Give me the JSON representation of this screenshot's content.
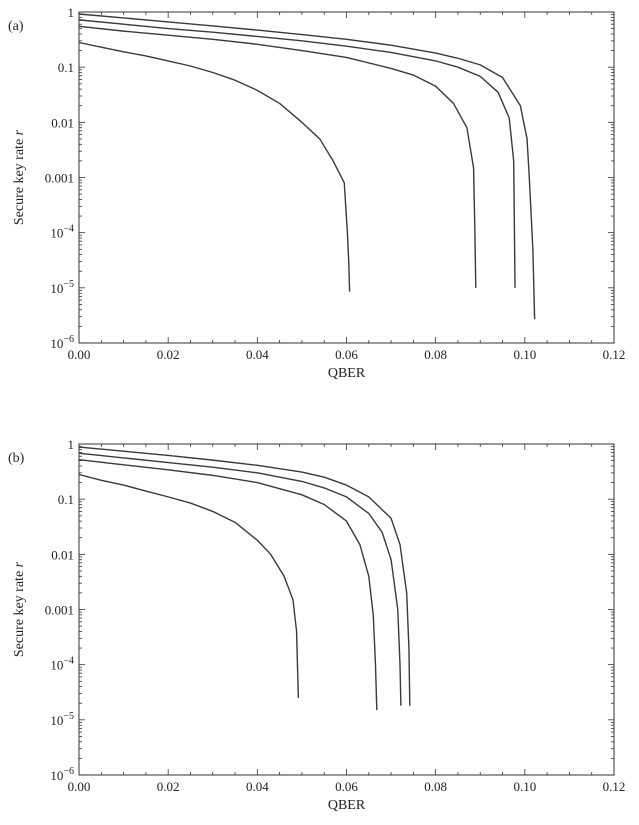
{
  "chart_data": [
    {
      "type": "line",
      "panel_label": "(a)",
      "xlabel": "QBER",
      "ylabel": "Secure key rate r",
      "xlim": [
        0,
        0.12
      ],
      "ylim": [
        1e-06,
        1
      ],
      "yscale": "log",
      "xticks": [
        "0.00",
        "0.02",
        "0.04",
        "0.06",
        "0.08",
        "0.10",
        "0.12"
      ],
      "yticks": [
        {
          "value": 1,
          "label": "1"
        },
        {
          "value": 0.1,
          "label": "0.1"
        },
        {
          "value": 0.01,
          "label": "0.01"
        },
        {
          "value": 0.001,
          "label": "0.001"
        },
        {
          "value": 0.0001,
          "label": "10^-4"
        },
        {
          "value": 1e-05,
          "label": "10^-5"
        },
        {
          "value": 1e-06,
          "label": "10^-6"
        }
      ],
      "series": [
        {
          "x": [
            0,
            0.005,
            0.01,
            0.015,
            0.02,
            0.025,
            0.03,
            0.035,
            0.04,
            0.045,
            0.05,
            0.054,
            0.057,
            0.0595,
            0.0602,
            0.0605,
            0.0607
          ],
          "values": [
            0.28,
            0.23,
            0.19,
            0.16,
            0.13,
            0.105,
            0.08,
            0.058,
            0.038,
            0.022,
            0.01,
            0.005,
            0.002,
            0.0008,
            0.0001,
            3e-05,
            8.5e-06
          ]
        },
        {
          "x": [
            0,
            0.01,
            0.02,
            0.03,
            0.04,
            0.05,
            0.06,
            0.07,
            0.075,
            0.08,
            0.084,
            0.087,
            0.0885,
            0.0888,
            0.089
          ],
          "values": [
            0.55,
            0.45,
            0.38,
            0.32,
            0.26,
            0.2,
            0.15,
            0.095,
            0.072,
            0.045,
            0.022,
            0.008,
            0.0015,
            0.0001,
            1e-05
          ]
        },
        {
          "x": [
            0,
            0.01,
            0.02,
            0.03,
            0.04,
            0.05,
            0.06,
            0.07,
            0.08,
            0.085,
            0.09,
            0.094,
            0.0965,
            0.0975,
            0.0978
          ],
          "values": [
            0.72,
            0.6,
            0.5,
            0.43,
            0.36,
            0.3,
            0.24,
            0.185,
            0.13,
            0.1,
            0.068,
            0.035,
            0.012,
            0.002,
            1e-05
          ]
        },
        {
          "x": [
            0,
            0.01,
            0.02,
            0.03,
            0.04,
            0.05,
            0.06,
            0.07,
            0.08,
            0.085,
            0.09,
            0.095,
            0.099,
            0.1005,
            0.101,
            0.1018,
            0.1022
          ],
          "values": [
            0.92,
            0.78,
            0.66,
            0.56,
            0.47,
            0.39,
            0.32,
            0.25,
            0.18,
            0.145,
            0.11,
            0.065,
            0.02,
            0.005,
            0.001,
            5e-05,
            2.7e-06
          ]
        }
      ]
    },
    {
      "type": "line",
      "panel_label": "(b)",
      "xlabel": "QBER",
      "ylabel": "Secure key rate r",
      "xlim": [
        0,
        0.12
      ],
      "ylim": [
        1e-06,
        1
      ],
      "yscale": "log",
      "xticks": [
        "0.00",
        "0.02",
        "0.04",
        "0.06",
        "0.08",
        "0.10",
        "0.12"
      ],
      "yticks": [
        {
          "value": 1,
          "label": "1"
        },
        {
          "value": 0.1,
          "label": "0.1"
        },
        {
          "value": 0.01,
          "label": "0.01"
        },
        {
          "value": 0.001,
          "label": "0.001"
        },
        {
          "value": 0.0001,
          "label": "10^-4"
        },
        {
          "value": 1e-05,
          "label": "10^-5"
        },
        {
          "value": 1e-06,
          "label": "10^-6"
        }
      ],
      "series": [
        {
          "x": [
            0,
            0.005,
            0.01,
            0.015,
            0.02,
            0.025,
            0.03,
            0.035,
            0.04,
            0.043,
            0.046,
            0.048,
            0.0488,
            0.049,
            0.0492
          ],
          "values": [
            0.28,
            0.22,
            0.18,
            0.14,
            0.11,
            0.085,
            0.06,
            0.038,
            0.018,
            0.01,
            0.004,
            0.0015,
            0.0004,
            0.0001,
            2.5e-05
          ]
        },
        {
          "x": [
            0,
            0.01,
            0.02,
            0.03,
            0.04,
            0.05,
            0.055,
            0.06,
            0.063,
            0.065,
            0.066,
            0.0665,
            0.0668
          ],
          "values": [
            0.52,
            0.42,
            0.34,
            0.27,
            0.2,
            0.12,
            0.08,
            0.04,
            0.015,
            0.004,
            0.0008,
            0.0001,
            1.5e-05
          ]
        },
        {
          "x": [
            0,
            0.01,
            0.02,
            0.03,
            0.04,
            0.05,
            0.055,
            0.06,
            0.065,
            0.068,
            0.07,
            0.0715,
            0.072,
            0.0722
          ],
          "values": [
            0.68,
            0.56,
            0.46,
            0.38,
            0.3,
            0.21,
            0.16,
            0.11,
            0.055,
            0.025,
            0.008,
            0.001,
            0.0001,
            1.8e-05
          ]
        },
        {
          "x": [
            0,
            0.01,
            0.02,
            0.03,
            0.04,
            0.05,
            0.055,
            0.06,
            0.065,
            0.07,
            0.072,
            0.0735,
            0.074,
            0.0742
          ],
          "values": [
            0.88,
            0.74,
            0.62,
            0.51,
            0.41,
            0.31,
            0.25,
            0.18,
            0.11,
            0.045,
            0.015,
            0.002,
            0.0002,
            1.8e-05
          ]
        }
      ]
    }
  ]
}
